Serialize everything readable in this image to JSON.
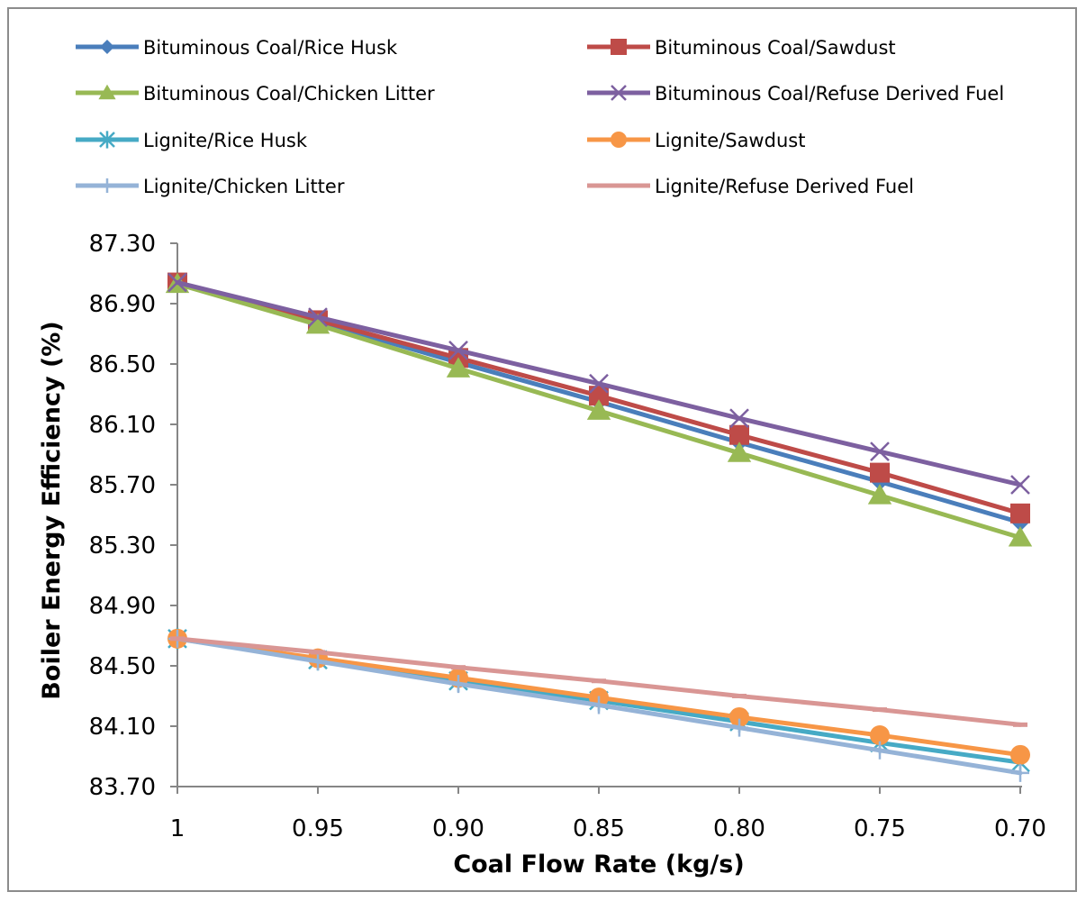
{
  "chart_data": {
    "type": "line",
    "title": "",
    "xlabel": "Coal Flow Rate (kg/s)",
    "ylabel": "Boiler Energy Efficiency (%)",
    "ylim": [
      83.7,
      87.3
    ],
    "yticks": [
      "83.70",
      "84.10",
      "84.50",
      "84.90",
      "85.30",
      "85.70",
      "86.10",
      "86.50",
      "86.90",
      "87.30"
    ],
    "categories": [
      "1",
      "0.95",
      "0.90",
      "0.85",
      "0.80",
      "0.75",
      "0.70"
    ],
    "grid": false,
    "legend_position": "top",
    "series": [
      {
        "name": "Bituminous Coal/Rice Husk",
        "color": "#4a7ebb",
        "marker": "diamond",
        "values": [
          87.04,
          86.78,
          86.51,
          86.25,
          85.98,
          85.72,
          85.45
        ]
      },
      {
        "name": "Bituminous Coal/Sawdust",
        "color": "#be4b48",
        "marker": "square",
        "values": [
          87.04,
          86.79,
          86.54,
          86.29,
          86.03,
          85.78,
          85.51
        ]
      },
      {
        "name": "Bituminous Coal/Chicken Litter",
        "color": "#98b954",
        "marker": "triangle",
        "values": [
          87.03,
          86.76,
          86.47,
          86.19,
          85.91,
          85.63,
          85.35
        ]
      },
      {
        "name": "Bituminous Coal/Refuse Derived Fuel",
        "color": "#7d60a0",
        "marker": "x",
        "values": [
          87.04,
          86.81,
          86.59,
          86.37,
          86.14,
          85.92,
          85.7
        ]
      },
      {
        "name": "Lignite/Rice Husk",
        "color": "#46aac5",
        "marker": "star",
        "values": [
          84.68,
          84.54,
          84.4,
          84.27,
          84.13,
          83.99,
          83.86
        ]
      },
      {
        "name": "Lignite/Sawdust",
        "color": "#f79646",
        "marker": "circle",
        "values": [
          84.68,
          84.55,
          84.42,
          84.29,
          84.16,
          84.04,
          83.91
        ]
      },
      {
        "name": "Lignite/Chicken Litter",
        "color": "#95b3d7",
        "marker": "plus",
        "values": [
          84.68,
          84.53,
          84.38,
          84.24,
          84.09,
          83.94,
          83.79
        ]
      },
      {
        "name": "Lignite/Refuse Derived Fuel",
        "color": "#d99694",
        "marker": "dash",
        "values": [
          84.68,
          84.59,
          84.49,
          84.4,
          84.3,
          84.21,
          84.11
        ]
      }
    ]
  }
}
